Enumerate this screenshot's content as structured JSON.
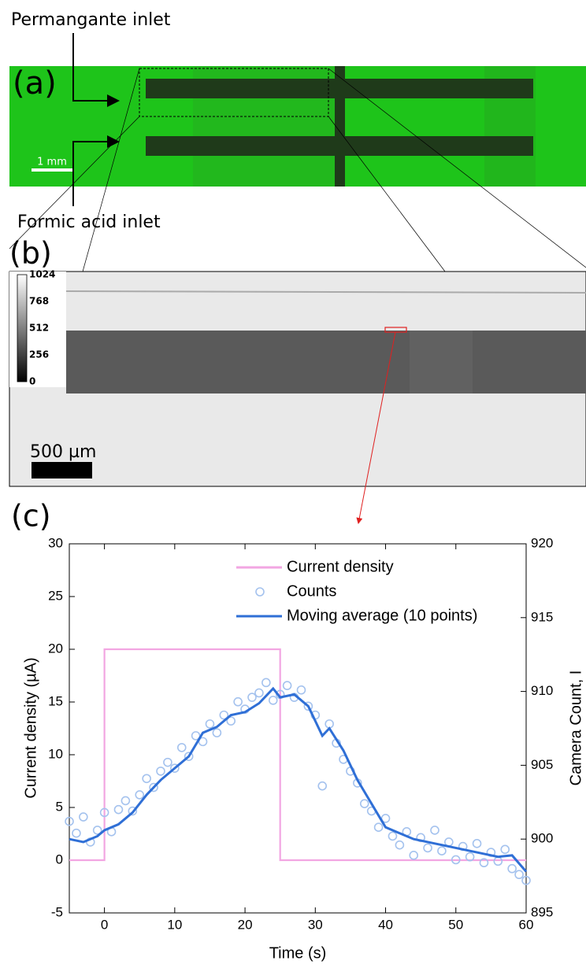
{
  "panel_a": {
    "label": "(a)",
    "permanganate_label": "Permangante inlet",
    "formic_label": "Formic acid inlet",
    "scale_bar": "1 mm"
  },
  "panel_b": {
    "label": "(b)",
    "colorbar_ticks": [
      1024,
      768,
      512,
      256,
      0
    ],
    "scale_bar": "500 µm"
  },
  "chart_data": {
    "type": "line",
    "panel_label": "(c)",
    "x_label": "Time (s)",
    "y_label": "Current density (µA)",
    "y2_label": "Camera Count, I",
    "xlim": [
      -5,
      60
    ],
    "xticks": [
      0,
      10,
      20,
      30,
      40,
      50,
      60
    ],
    "ylim": [
      -5,
      30
    ],
    "yticks": [
      -5,
      0,
      5,
      10,
      15,
      20,
      25,
      30
    ],
    "y2lim": [
      895,
      920
    ],
    "y2ticks": [
      895,
      900,
      905,
      910,
      915,
      920
    ],
    "legend": "top",
    "series": [
      {
        "name": "Current density",
        "color": "#f2a6e2",
        "style": "line",
        "x": [
          -5,
          0,
          0,
          25,
          25,
          60
        ],
        "values": [
          0,
          0,
          20,
          20,
          0,
          0
        ]
      },
      {
        "name": "Counts",
        "color": "#a4c2ee",
        "style": "scatter",
        "axis": "y2",
        "x": [
          -5,
          -4,
          -3,
          -2,
          -1,
          0,
          1,
          2,
          3,
          4,
          5,
          6,
          7,
          8,
          9,
          10,
          11,
          12,
          13,
          14,
          15,
          16,
          17,
          18,
          19,
          20,
          21,
          22,
          23,
          24,
          25,
          26,
          27,
          28,
          29,
          30,
          31,
          32,
          33,
          34,
          35,
          36,
          37,
          38,
          39,
          40,
          41,
          42,
          43,
          44,
          45,
          46,
          47,
          48,
          49,
          50,
          51,
          52,
          53,
          54,
          55,
          56,
          57,
          58,
          59,
          60
        ],
        "values": [
          901.2,
          900.4,
          901.5,
          899.8,
          900.6,
          901.8,
          900.5,
          902.0,
          902.6,
          901.9,
          903.0,
          904.1,
          903.5,
          904.6,
          905.2,
          904.8,
          906.2,
          905.6,
          907.0,
          906.6,
          907.8,
          907.2,
          908.4,
          908.0,
          909.3,
          908.8,
          909.6,
          909.9,
          910.6,
          909.4,
          909.8,
          910.4,
          909.6,
          910.1,
          909.0,
          908.4,
          903.6,
          907.8,
          906.5,
          905.4,
          904.6,
          903.8,
          902.4,
          901.9,
          900.8,
          901.4,
          900.2,
          899.6,
          900.5,
          898.9,
          900.1,
          899.4,
          900.6,
          899.2,
          899.8,
          898.6,
          899.5,
          898.8,
          899.7,
          898.4,
          899.1,
          898.5,
          899.3,
          898.0,
          897.6,
          897.2
        ]
      },
      {
        "name": "Moving average (10 points)",
        "color": "#2f6fd6",
        "style": "line",
        "axis": "y2",
        "x": [
          -5,
          -3,
          -1,
          0,
          2,
          4,
          6,
          8,
          10,
          12,
          14,
          16,
          18,
          20,
          22,
          24,
          25,
          27,
          29,
          31,
          32,
          34,
          36,
          38,
          40,
          42,
          44,
          46,
          48,
          50,
          52,
          54,
          56,
          58,
          60
        ],
        "values": [
          900.0,
          899.8,
          900.2,
          900.6,
          901.0,
          901.8,
          903.0,
          904.0,
          904.8,
          905.6,
          907.2,
          907.6,
          908.4,
          908.6,
          909.2,
          910.2,
          909.6,
          909.8,
          909.0,
          907.0,
          907.5,
          906.0,
          904.0,
          902.4,
          900.8,
          900.4,
          900.0,
          899.8,
          899.6,
          899.4,
          899.2,
          899.0,
          898.8,
          898.9,
          897.8
        ]
      }
    ]
  }
}
